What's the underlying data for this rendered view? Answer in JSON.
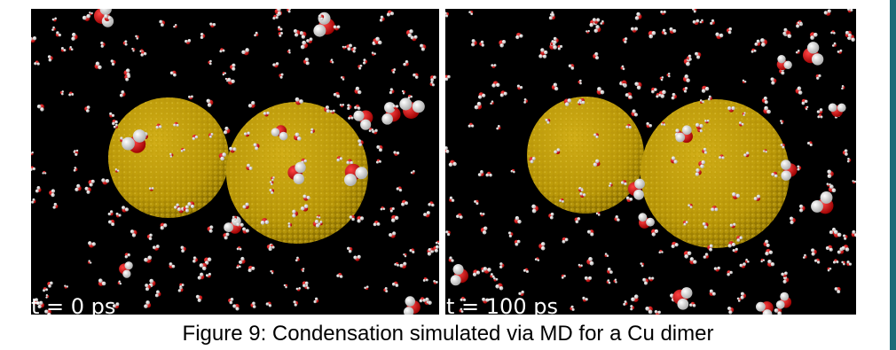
{
  "figure": {
    "panels": [
      {
        "label": "t = 0 ps"
      },
      {
        "label": "t = 100 ps"
      }
    ],
    "caption": "Figure 9: Condensation simulated via MD for a Cu dimer"
  }
}
